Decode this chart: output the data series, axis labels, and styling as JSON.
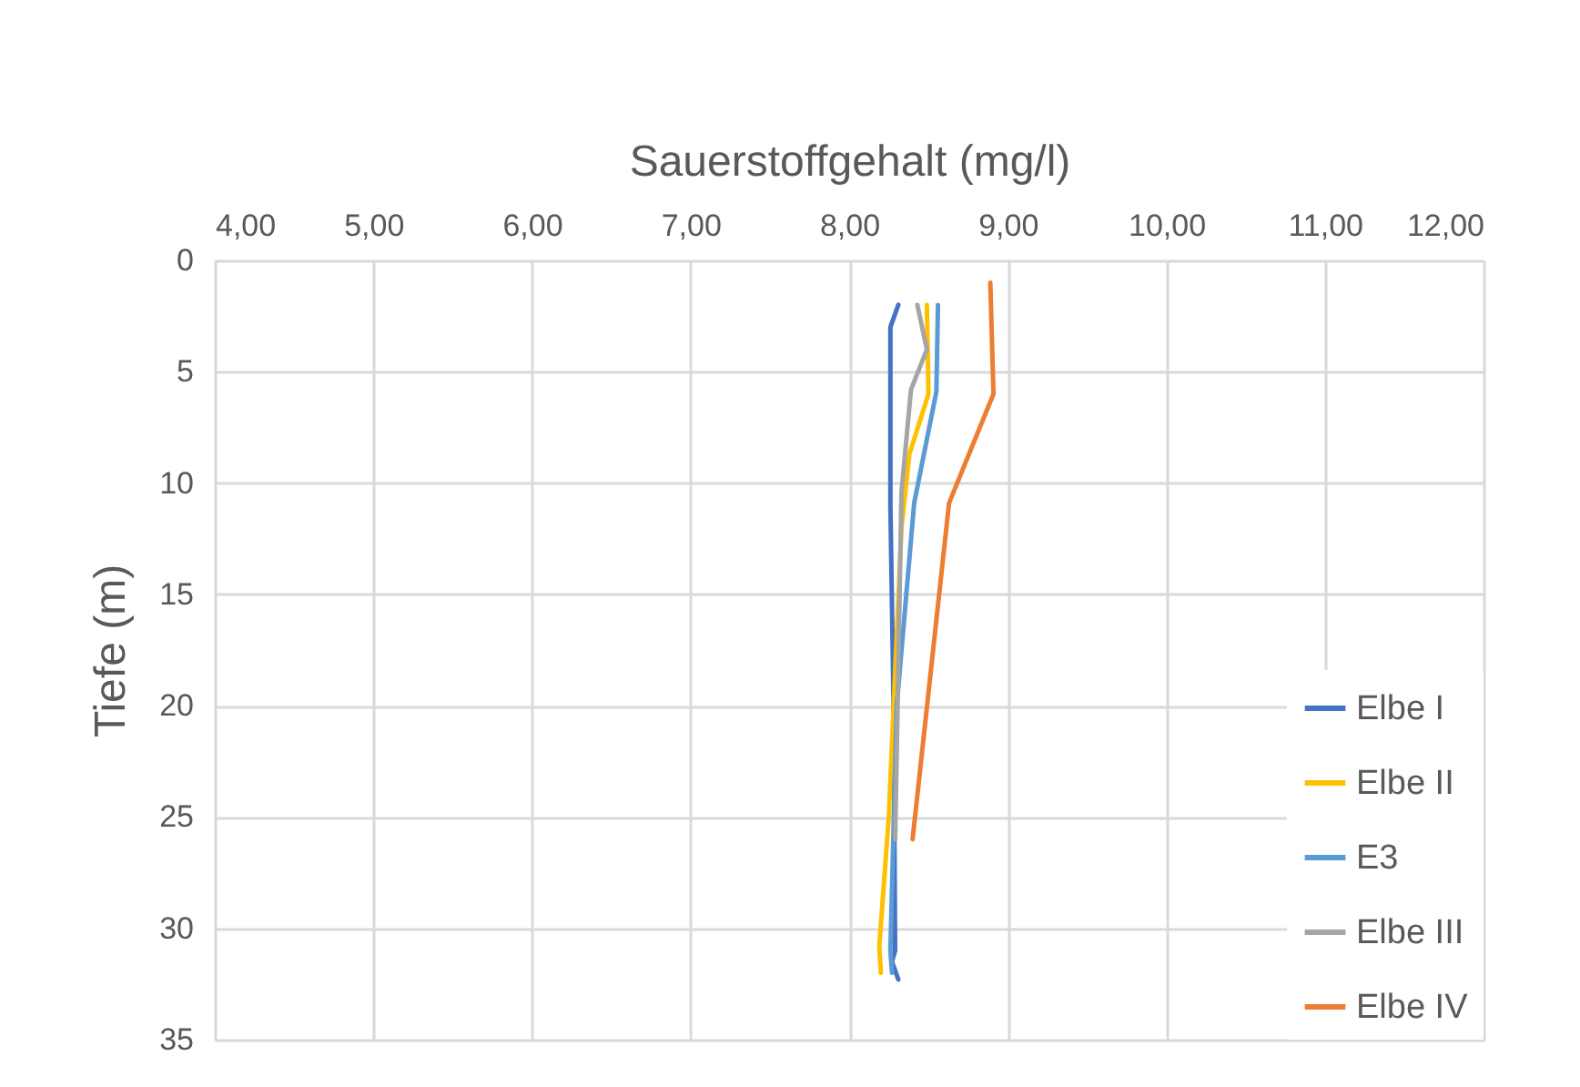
{
  "chart_data": {
    "type": "line",
    "xlabel": "Sauerstoffgehalt (mg/l)",
    "ylabel": "Tiefe (m)",
    "xlim": [
      4,
      12
    ],
    "xticks": [
      {
        "value": 4,
        "label": "4,00"
      },
      {
        "value": 5,
        "label": "5,00"
      },
      {
        "value": 6,
        "label": "6,00"
      },
      {
        "value": 7,
        "label": "7,00"
      },
      {
        "value": 8,
        "label": "8,00"
      },
      {
        "value": 9,
        "label": "9,00"
      },
      {
        "value": 10,
        "label": "10,00"
      },
      {
        "value": 11,
        "label": "11,00"
      },
      {
        "value": 12,
        "label": "12,00"
      }
    ],
    "ylim": [
      35,
      0
    ],
    "yticks": [
      0,
      5,
      10,
      15,
      20,
      25,
      30,
      35
    ],
    "grid": true,
    "legend": "bottom right",
    "marker": "none",
    "line_style": "solid",
    "series": [
      {
        "name": "Elbe I",
        "color": "#4472c4",
        "x": [
          8.31,
          8.26,
          8.26,
          8.28,
          8.29,
          8.27,
          8.31
        ],
        "values": [
          2,
          3,
          11,
          20,
          31,
          31.5,
          32.3
        ]
      },
      {
        "name": "Elbe II",
        "color": "#ffc000",
        "x": [
          8.49,
          8.5,
          8.38,
          8.33,
          8.25,
          8.19,
          8.2
        ],
        "values": [
          2,
          6,
          8.7,
          12,
          25,
          30.8,
          32
        ]
      },
      {
        "name": "E3",
        "color": "#5b9bd5",
        "x": [
          8.56,
          8.55,
          8.41,
          8.3,
          8.26,
          8.27
        ],
        "values": [
          2,
          5.9,
          10.9,
          20,
          31,
          32
        ]
      },
      {
        "name": "Elbe III",
        "color": "#a5a5a5",
        "x": [
          8.43,
          8.49,
          8.39,
          8.33,
          8.29
        ],
        "values": [
          2,
          4,
          5.8,
          10.4,
          26
        ]
      },
      {
        "name": "Elbe IV",
        "color": "#ed7d31",
        "x": [
          8.89,
          8.91,
          8.63,
          8.4
        ],
        "values": [
          1,
          6,
          10.9,
          26
        ]
      }
    ]
  }
}
